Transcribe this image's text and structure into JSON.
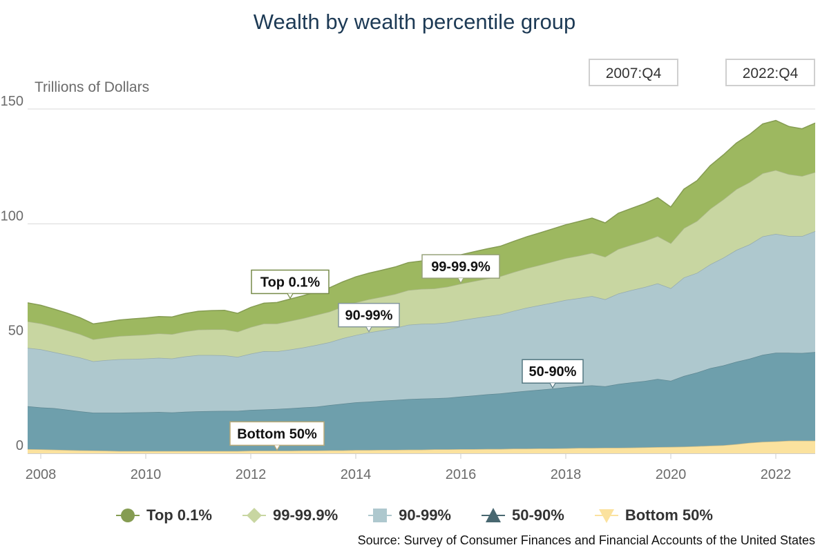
{
  "title": "Wealth by wealth percentile group",
  "range": {
    "start": "2007:Q4",
    "end": "2022:Q4"
  },
  "source": "Source: Survey of Consumer Finances and Financial Accounts of the United States",
  "chart_data": {
    "type": "area",
    "stacked": true,
    "title": "Wealth by wealth percentile group",
    "ylabel": "Trillions of Dollars",
    "xlabel": "",
    "xlim": [
      2007.75,
      2022.75
    ],
    "ylim": [
      0,
      150
    ],
    "yticks": [
      0,
      50,
      100,
      150
    ],
    "xticks": [
      2008,
      2010,
      2012,
      2014,
      2016,
      2018,
      2020,
      2022
    ],
    "grid": true,
    "legend_position": "bottom",
    "x": [
      2007.75,
      2008.0,
      2008.25,
      2008.5,
      2008.75,
      2009.0,
      2009.25,
      2009.5,
      2009.75,
      2010.0,
      2010.25,
      2010.5,
      2010.75,
      2011.0,
      2011.25,
      2011.5,
      2011.75,
      2012.0,
      2012.25,
      2012.5,
      2012.75,
      2013.0,
      2013.25,
      2013.5,
      2013.75,
      2014.0,
      2014.25,
      2014.5,
      2014.75,
      2015.0,
      2015.25,
      2015.5,
      2015.75,
      2016.0,
      2016.25,
      2016.5,
      2016.75,
      2017.0,
      2017.25,
      2017.5,
      2017.75,
      2018.0,
      2018.25,
      2018.5,
      2018.75,
      2019.0,
      2019.25,
      2019.5,
      2019.75,
      2020.0,
      2020.25,
      2020.5,
      2020.75,
      2021.0,
      2021.25,
      2021.5,
      2021.75,
      2022.0,
      2022.25,
      2022.5,
      2022.75
    ],
    "series": [
      {
        "name": "Bottom 50%",
        "color": "#fbe29e",
        "marker": "triangle-down",
        "values": [
          1.8,
          1.7,
          1.6,
          1.4,
          1.3,
          1.2,
          1.1,
          1.0,
          1.0,
          1.0,
          1.0,
          1.0,
          1.0,
          1.0,
          1.0,
          1.0,
          1.0,
          1.1,
          1.1,
          1.1,
          1.1,
          1.2,
          1.2,
          1.3,
          1.3,
          1.4,
          1.4,
          1.5,
          1.5,
          1.6,
          1.6,
          1.7,
          1.7,
          1.8,
          1.8,
          1.9,
          1.9,
          2.0,
          2.0,
          2.1,
          2.1,
          2.2,
          2.3,
          2.3,
          2.4,
          2.4,
          2.5,
          2.6,
          2.7,
          2.8,
          2.9,
          3.1,
          3.3,
          3.5,
          4.0,
          4.6,
          5.0,
          5.2,
          5.5,
          5.5,
          5.5
        ]
      },
      {
        "name": "50-90%",
        "color": "#6e9fac",
        "marker": "triangle",
        "values": [
          18.7,
          18.3,
          18.1,
          17.6,
          17.0,
          16.5,
          16.6,
          16.7,
          16.8,
          16.9,
          17.0,
          16.8,
          17.1,
          17.3,
          17.4,
          17.5,
          17.5,
          17.8,
          18.0,
          18.2,
          18.5,
          18.8,
          19.1,
          19.7,
          20.3,
          20.8,
          21.1,
          21.4,
          21.7,
          22.0,
          22.2,
          22.3,
          22.5,
          22.9,
          23.4,
          23.8,
          24.2,
          24.7,
          25.2,
          25.6,
          26.1,
          26.6,
          27.0,
          27.3,
          26.8,
          27.8,
          28.4,
          28.9,
          29.7,
          28.8,
          30.8,
          32.1,
          33.8,
          34.8,
          35.9,
          36.6,
          37.9,
          38.6,
          38.3,
          38.2,
          38.6
        ]
      },
      {
        "name": "90-99%",
        "color": "#aec8ce",
        "marker": "square",
        "values": [
          25.4,
          25.3,
          24.4,
          23.9,
          23.4,
          22.4,
          22.9,
          23.3,
          23.3,
          23.4,
          23.6,
          23.5,
          24.1,
          24.5,
          24.4,
          24.2,
          23.5,
          24.5,
          25.4,
          25.1,
          25.6,
          26.1,
          26.9,
          27.4,
          28.5,
          29.3,
          30.2,
          30.7,
          31.4,
          32.4,
          32.6,
          32.5,
          32.8,
          33.3,
          33.7,
          34.0,
          34.4,
          35.3,
          36.2,
          36.8,
          37.4,
          38.0,
          38.3,
          38.9,
          37.9,
          39.4,
          40.2,
          40.9,
          41.6,
          40.3,
          42.9,
          43.4,
          45.2,
          46.9,
          48.7,
          49.8,
          51.6,
          51.8,
          50.9,
          50.9,
          52.7
        ]
      },
      {
        "name": "99-99.9%",
        "color": "#c8d6a1",
        "marker": "diamond",
        "values": [
          11.6,
          11.3,
          11.1,
          10.7,
          10.2,
          9.6,
          9.8,
          10.1,
          10.3,
          10.4,
          10.6,
          10.6,
          10.9,
          11.1,
          11.2,
          11.3,
          11.0,
          11.6,
          12.0,
          12.1,
          12.5,
          12.8,
          13.1,
          13.3,
          13.8,
          14.2,
          14.4,
          14.6,
          14.8,
          15.1,
          15.2,
          15.3,
          15.6,
          15.9,
          16.1,
          16.4,
          16.6,
          16.9,
          17.2,
          17.5,
          17.9,
          18.2,
          18.5,
          18.8,
          18.5,
          19.4,
          19.7,
          20.1,
          20.6,
          19.6,
          21.5,
          22.6,
          24.2,
          25.4,
          26.5,
          27.1,
          27.5,
          27.8,
          26.9,
          26.2,
          25.7
        ]
      },
      {
        "name": "Top 0.1%",
        "color": "#9db860",
        "marker": "circle",
        "values": [
          8.1,
          7.9,
          7.7,
          7.5,
          7.2,
          6.7,
          6.8,
          7.0,
          7.2,
          7.3,
          7.4,
          7.5,
          7.8,
          8.0,
          8.2,
          8.3,
          8.0,
          8.6,
          8.9,
          9.2,
          9.5,
          9.8,
          10.1,
          10.4,
          10.8,
          11.2,
          11.4,
          11.6,
          11.8,
          12.0,
          12.2,
          12.3,
          12.4,
          12.6,
          12.8,
          13.0,
          13.1,
          13.4,
          13.7,
          14.0,
          14.3,
          14.6,
          14.9,
          15.2,
          14.8,
          15.6,
          15.9,
          16.3,
          16.8,
          15.8,
          17.0,
          17.6,
          18.8,
          19.4,
          20.1,
          20.8,
          21.5,
          21.6,
          20.8,
          20.6,
          21.4
        ]
      }
    ],
    "annotations": [
      {
        "text": "Top 0.1%",
        "series": "Top 0.1%",
        "x": 2012.75
      },
      {
        "text": "99-99.9%",
        "series": "99-99.9%",
        "x": 2016.0
      },
      {
        "text": "90-99%",
        "series": "90-99%",
        "x": 2014.25
      },
      {
        "text": "50-90%",
        "series": "50-90%",
        "x": 2017.75
      },
      {
        "text": "Bottom 50%",
        "series": "Bottom 50%",
        "x": 2012.5
      }
    ]
  }
}
